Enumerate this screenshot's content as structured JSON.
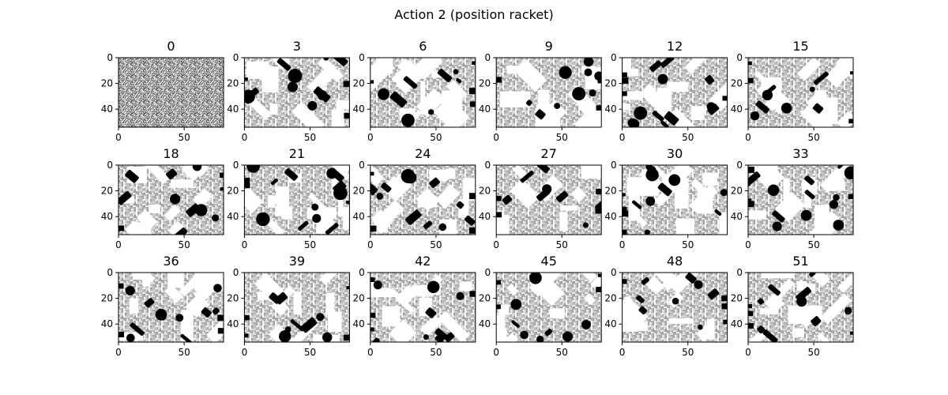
{
  "figure": {
    "suptitle": "Action 2 (position racket)"
  },
  "chart_data": {
    "type": "heatmap",
    "colormap": "gray",
    "grid": false,
    "image_width": 80,
    "image_height": 54,
    "x_ticks": [
      "0",
      "50"
    ],
    "x_tick_values": [
      0,
      50
    ],
    "y_ticks": [
      "0",
      "20",
      "40"
    ],
    "y_tick_values": [
      0,
      20,
      40
    ],
    "xlim": [
      0,
      80
    ],
    "ylim": [
      54,
      0
    ],
    "rows": 3,
    "cols": 6,
    "panel_titles": [
      "0",
      "3",
      "6",
      "9",
      "12",
      "15",
      "18",
      "21",
      "24",
      "27",
      "30",
      "33",
      "36",
      "39",
      "42",
      "45",
      "48",
      "51"
    ]
  }
}
